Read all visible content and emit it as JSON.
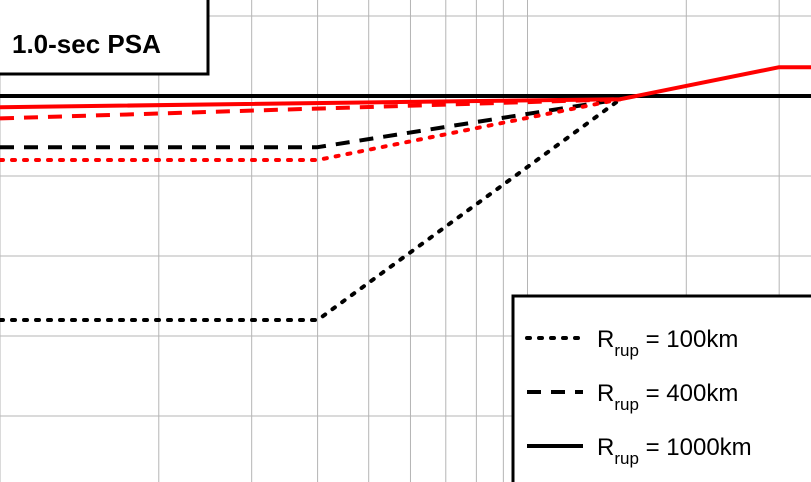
{
  "chart_data": {
    "type": "line",
    "title": "1.0-sec PSA",
    "xlabel": "",
    "ylabel": "",
    "x_scale": "log",
    "xlim": [
      1,
      100
    ],
    "ylim": [
      0,
      3
    ],
    "grid": true,
    "legend_position": "bottom-right",
    "legend": [
      {
        "prefix": "R",
        "sub": "rup",
        "suffix": " = 100km",
        "style": "dotted"
      },
      {
        "prefix": "R",
        "sub": "rup",
        "suffix": " = 400km",
        "style": "dashed"
      },
      {
        "prefix": "R",
        "sub": "rup",
        "suffix": " = 1000km",
        "style": "solid"
      }
    ],
    "series": [
      {
        "name": "Rrup = 100km (black)",
        "color": "#000000",
        "style": "dotted",
        "points": [
          [
            1,
            0.6
          ],
          [
            4,
            0.6
          ],
          [
            15,
            1.98
          ]
        ]
      },
      {
        "name": "Rrup = 400km (black)",
        "color": "#000000",
        "style": "dashed",
        "points": [
          [
            1,
            1.68
          ],
          [
            4,
            1.68
          ],
          [
            15,
            1.98
          ]
        ]
      },
      {
        "name": "Rrup = 1000km (black)",
        "color": "#000000",
        "style": "solid",
        "points": [
          [
            1,
            2.0
          ],
          [
            100,
            2.0
          ]
        ]
      },
      {
        "name": "Rrup = 100km (red)",
        "color": "#ff0000",
        "style": "dotted",
        "points": [
          [
            1,
            1.6
          ],
          [
            4,
            1.6
          ],
          [
            15,
            1.98
          ]
        ]
      },
      {
        "name": "Rrup = 400km (red)",
        "color": "#ff0000",
        "style": "dashed",
        "points": [
          [
            1,
            1.86
          ],
          [
            15,
            1.98
          ]
        ]
      },
      {
        "name": "Rrup = 1000km (red)",
        "color": "#ff0000",
        "style": "solid",
        "points": [
          [
            1,
            1.93
          ],
          [
            15,
            1.98
          ],
          [
            30,
            2.18
          ],
          [
            100,
            2.18
          ]
        ]
      }
    ]
  }
}
